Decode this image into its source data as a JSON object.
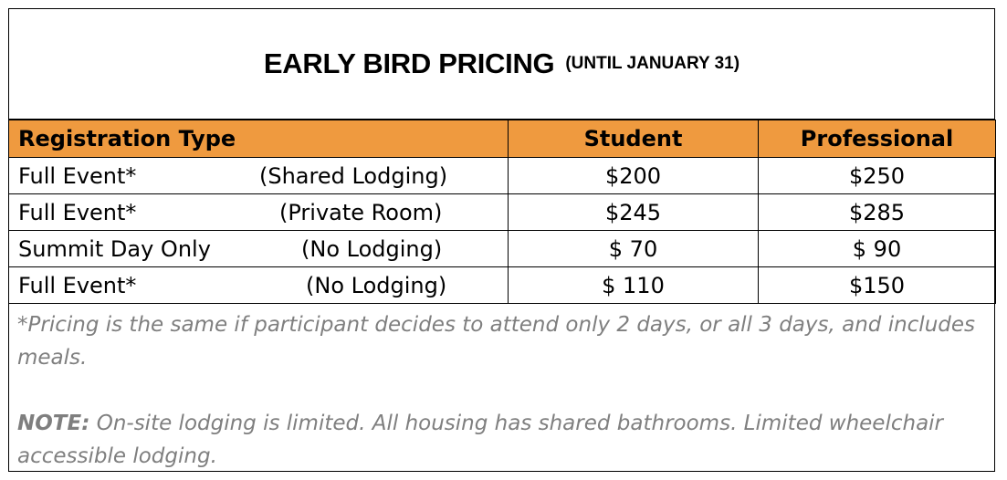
{
  "title": {
    "main": "EARLY BIRD PRICING",
    "sub": "(UNTIL JANUARY 31)"
  },
  "table": {
    "headers": {
      "type": "Registration Type",
      "student": "Student",
      "professional": "Professional"
    },
    "header_color": "#ef9a3f",
    "rows": [
      {
        "type": "Full Event*",
        "lodging": "(Shared Lodging)",
        "student": "$200",
        "professional": "$250"
      },
      {
        "type": "Full Event*",
        "lodging": "(Private Room)",
        "student": "$245",
        "professional": "$285"
      },
      {
        "type": "Summit Day Only",
        "lodging": "(No Lodging)",
        "student": "$ 70",
        "professional": "$ 90"
      },
      {
        "type": "Full Event*",
        "lodging": "(No Lodging)",
        "student": "$ 110",
        "professional": "$150"
      }
    ]
  },
  "notes": {
    "pricing_note": "*Pricing is the same if participant decides to attend only 2 days, or all 3 days, and includes meals.",
    "note_label": "NOTE:",
    "note_text": " On-site lodging is limited. All housing has shared bathrooms. Limited wheelchair accessible lodging."
  }
}
